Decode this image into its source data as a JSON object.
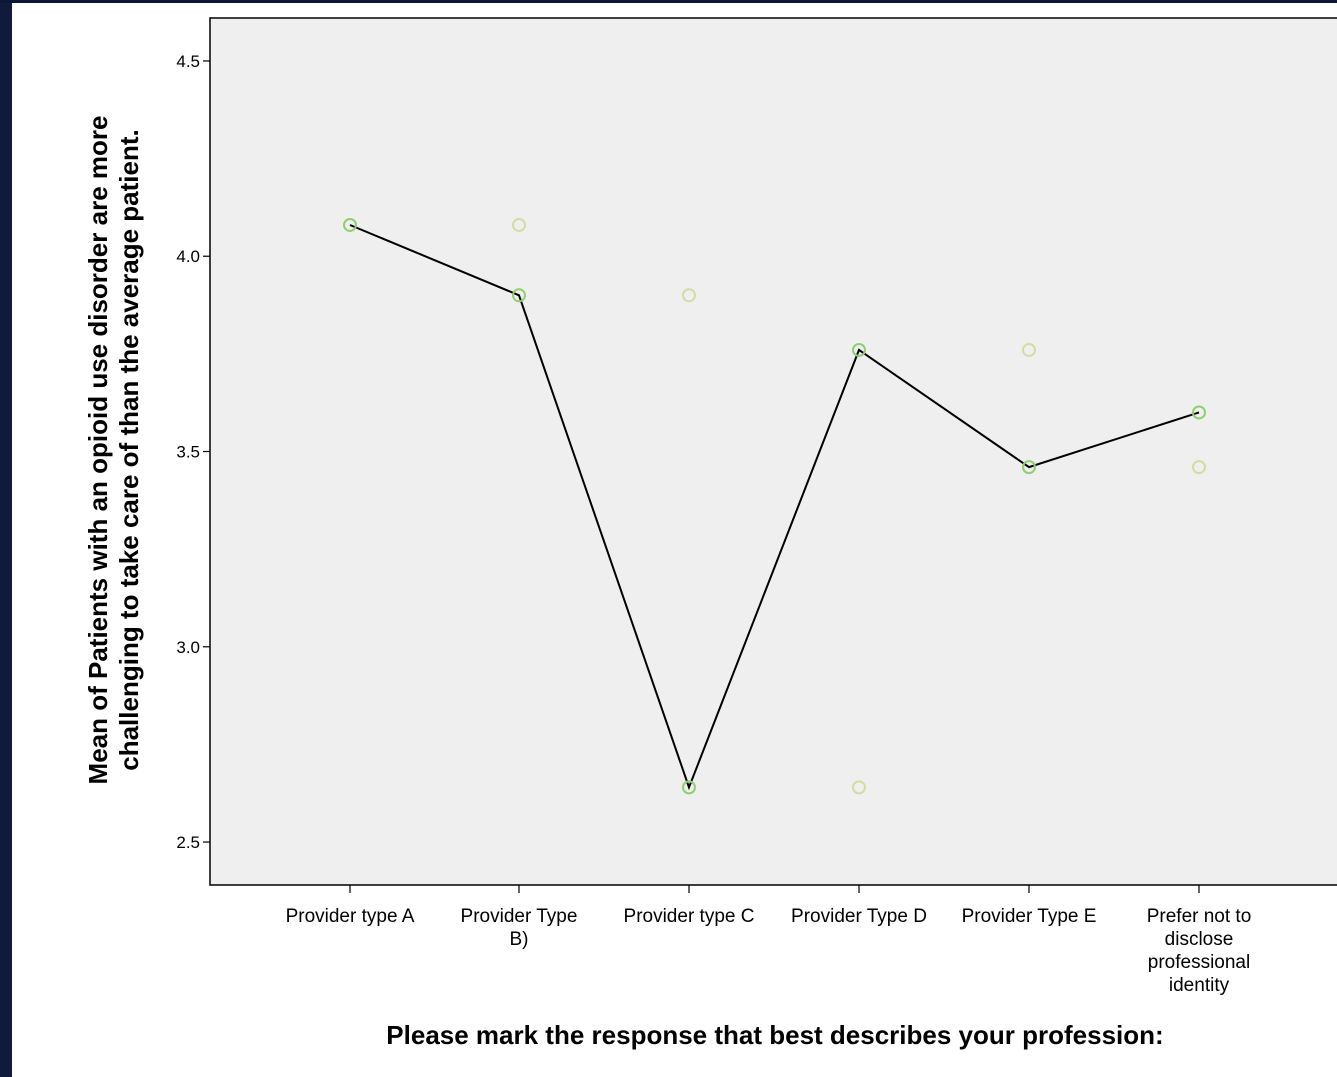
{
  "colors": {
    "background": "#101a3a",
    "plot_area": "#efefef",
    "line": "#000000",
    "marker": "#8fcf6f",
    "secondary_marker": "#d4dca0"
  },
  "chart_data": {
    "type": "line",
    "xlabel": "Please mark the response that best describes your profession:",
    "ylabel_lines": [
      "Mean of Patients with an opioid use disorder are more",
      "challenging to take care of than the average patient."
    ],
    "categories": [
      [
        "Provider type A"
      ],
      [
        "Provider Type",
        "B)"
      ],
      [
        "Provider type C"
      ],
      [
        "Provider Type D"
      ],
      [
        "Provider Type E"
      ],
      [
        "Prefer not to",
        "disclose",
        "professional",
        "identity"
      ]
    ],
    "series": [
      {
        "values": [
          4.08,
          3.9,
          2.64,
          3.76,
          3.46,
          3.6
        ]
      }
    ],
    "secondary_points": [
      {
        "category_index": 1,
        "value": 4.08
      },
      {
        "category_index": 2,
        "value": 3.9
      },
      {
        "category_index": 3,
        "value": 2.64
      },
      {
        "category_index": 4,
        "value": 3.76
      },
      {
        "category_index": 5,
        "value": 3.46
      }
    ],
    "yticks": [
      "2.5",
      "3.0",
      "3.5",
      "4.0",
      "4.5"
    ],
    "ylim": [
      2.39,
      4.61
    ],
    "grid": false,
    "legend": "none"
  }
}
